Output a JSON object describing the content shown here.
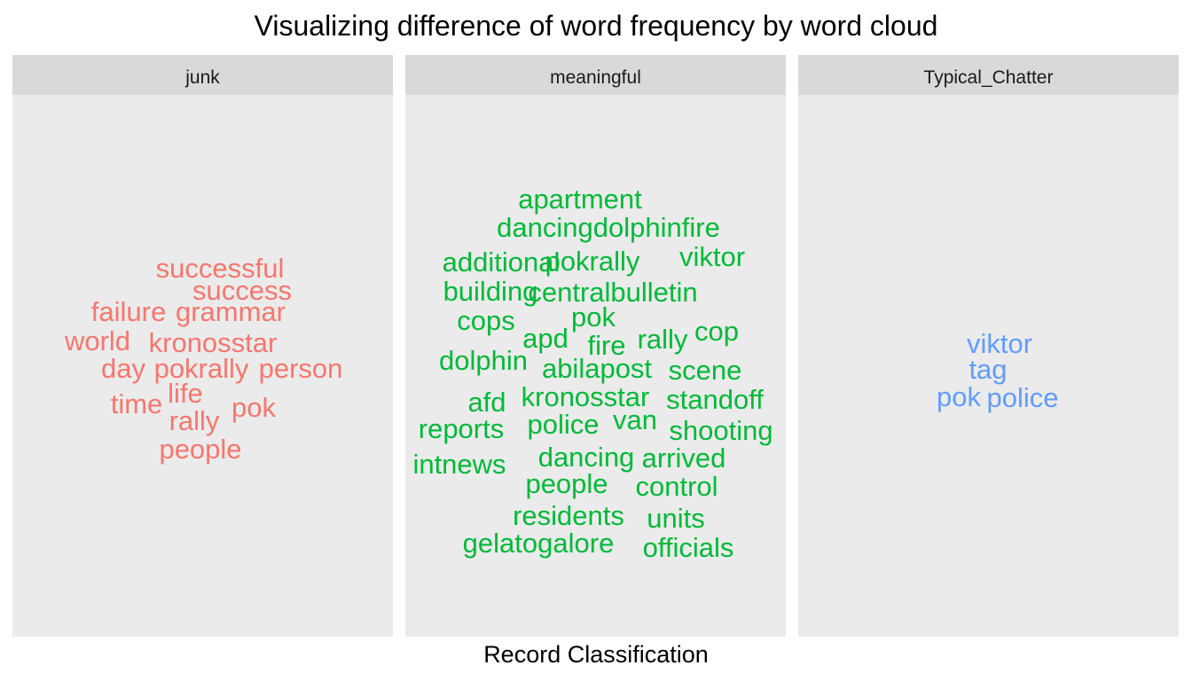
{
  "chart_data": {
    "type": "wordcloud",
    "title": "Visualizing difference of word frequency by word cloud",
    "xlabel": "Record Classification",
    "facets": [
      {
        "name": "junk",
        "color": "#F8766D",
        "words": [
          "successful",
          "success",
          "failure",
          "grammar",
          "world",
          "kronosstar",
          "day",
          "pokrally",
          "person",
          "life",
          "time",
          "pok",
          "rally",
          "people"
        ]
      },
      {
        "name": "meaningful",
        "color": "#00BA38",
        "words": [
          "apartment",
          "dancingdolphinfire",
          "additional",
          "pokrally",
          "viktor",
          "building",
          "centralbulletin",
          "cops",
          "pok",
          "apd",
          "fire",
          "rally",
          "cop",
          "dolphin",
          "abilapost",
          "scene",
          "afd",
          "kronosstar",
          "standoff",
          "reports",
          "police",
          "van",
          "shooting",
          "intnews",
          "dancing",
          "arrived",
          "people",
          "control",
          "residents",
          "units",
          "gelatogalore",
          "officials"
        ]
      },
      {
        "name": "Typical_Chatter",
        "color": "#619CFF",
        "words": [
          "viktor",
          "tag",
          "pok",
          "police"
        ]
      }
    ]
  }
}
